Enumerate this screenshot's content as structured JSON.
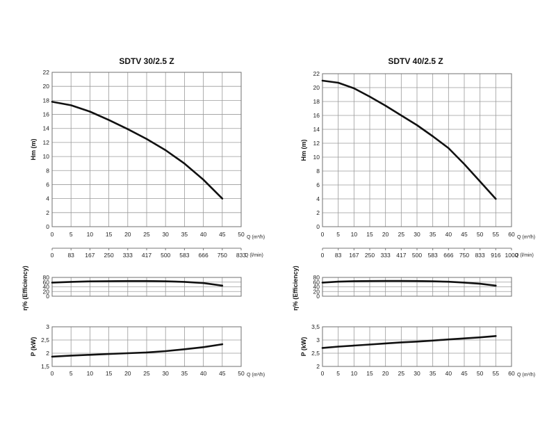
{
  "chart_data": [
    {
      "type": "line",
      "title": "SDTV 30/2.5 Z",
      "head": {
        "ylabel": "Hm (m)",
        "ylim": [
          0,
          22
        ],
        "yticks": [
          "0",
          "2",
          "4",
          "6",
          "8",
          "10",
          "12",
          "14",
          "16",
          "18",
          "20",
          "22"
        ],
        "xlim": [
          0,
          50
        ],
        "xticks": [
          "0",
          "5",
          "10",
          "15",
          "20",
          "25",
          "30",
          "35",
          "40",
          "45",
          "50"
        ],
        "x_unit": "Q (m³/h)",
        "secondary_xticks": [
          "0",
          "83",
          "167",
          "250",
          "333",
          "417",
          "500",
          "583",
          "666",
          "750",
          "833"
        ],
        "secondary_unit": "Q (l/min)",
        "x": [
          0,
          5,
          10,
          15,
          20,
          25,
          30,
          35,
          40,
          45
        ],
        "values": [
          17.8,
          17.3,
          16.4,
          15.2,
          13.9,
          12.5,
          10.9,
          9.0,
          6.7,
          4.0
        ]
      },
      "efficiency": {
        "ylabel": "η% (Efficiency)",
        "ylim": [
          0,
          80
        ],
        "yticks": [
          "0",
          "20",
          "40",
          "60",
          "80"
        ],
        "xlim": [
          0,
          50
        ],
        "x": [
          0,
          5,
          10,
          15,
          20,
          25,
          30,
          35,
          40,
          45
        ],
        "values": [
          58,
          61,
          63,
          64,
          64.5,
          64.5,
          63.5,
          61,
          56,
          45
        ]
      },
      "power": {
        "ylabel": "P (kW)",
        "ylim": [
          1.5,
          3
        ],
        "yticks": [
          "1,5",
          "2",
          "2,5",
          "3"
        ],
        "xlim": [
          0,
          50
        ],
        "xticks": [
          "0",
          "5",
          "10",
          "15",
          "20",
          "25",
          "30",
          "35",
          "40",
          "45",
          "50"
        ],
        "x_unit": "Q (m³/h)",
        "x": [
          0,
          5,
          10,
          15,
          20,
          25,
          30,
          35,
          40,
          45
        ],
        "values": [
          1.87,
          1.91,
          1.94,
          1.97,
          2.0,
          2.03,
          2.08,
          2.15,
          2.23,
          2.34
        ]
      }
    },
    {
      "type": "line",
      "title": "SDTV 40/2.5 Z",
      "head": {
        "ylabel": "Hm (m)",
        "ylim": [
          0,
          22
        ],
        "yticks": [
          "0",
          "2",
          "4",
          "6",
          "8",
          "10",
          "12",
          "14",
          "16",
          "18",
          "20",
          "22"
        ],
        "xlim": [
          0,
          60
        ],
        "xticks": [
          "0",
          "5",
          "10",
          "15",
          "20",
          "25",
          "30",
          "35",
          "40",
          "45",
          "50",
          "55",
          "60"
        ],
        "x_unit": "Q (m³/h)",
        "secondary_xticks": [
          "0",
          "83",
          "167",
          "250",
          "333",
          "417",
          "500",
          "583",
          "666",
          "750",
          "833",
          "916",
          "1000"
        ],
        "secondary_unit": "Q (l/min)",
        "x": [
          0,
          5,
          10,
          15,
          20,
          25,
          30,
          35,
          40,
          45,
          50,
          55
        ],
        "values": [
          21.0,
          20.7,
          19.9,
          18.7,
          17.4,
          16.0,
          14.6,
          13.0,
          11.3,
          9.0,
          6.5,
          4.0
        ]
      },
      "efficiency": {
        "ylabel": "η% (Efficiency)",
        "ylim": [
          0,
          80
        ],
        "yticks": [
          "0",
          "20",
          "40",
          "60",
          "80"
        ],
        "xlim": [
          0,
          60
        ],
        "x": [
          0,
          5,
          10,
          15,
          20,
          25,
          30,
          35,
          40,
          45,
          50,
          55
        ],
        "values": [
          58,
          62,
          64,
          64.5,
          65,
          65,
          64.5,
          63.5,
          61.5,
          58,
          53,
          45
        ]
      },
      "power": {
        "ylabel": "P (kW)",
        "ylim": [
          2,
          3.5
        ],
        "yticks": [
          "2",
          "2,5",
          "3",
          "3,5"
        ],
        "xlim": [
          0,
          60
        ],
        "xticks": [
          "0",
          "5",
          "10",
          "15",
          "20",
          "25",
          "30",
          "35",
          "40",
          "45",
          "50",
          "55",
          "60"
        ],
        "x_unit": "Q (m³/h)",
        "x": [
          0,
          5,
          10,
          15,
          20,
          25,
          30,
          35,
          40,
          45,
          50,
          55
        ],
        "values": [
          2.7,
          2.75,
          2.79,
          2.83,
          2.87,
          2.91,
          2.94,
          2.98,
          3.02,
          3.06,
          3.1,
          3.15
        ]
      }
    }
  ]
}
